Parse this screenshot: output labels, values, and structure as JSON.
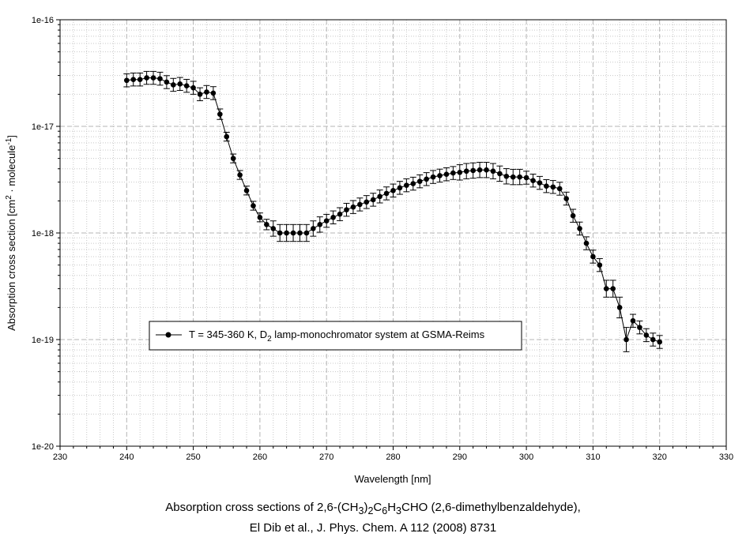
{
  "chart_data": {
    "type": "scatter",
    "xlabel": "Wavelength [nm]",
    "ylabel": {
      "pre": "Absorption cross section [cm",
      "sup1": "2",
      "mid": " · molecule",
      "sup2": "-1",
      "post": "]"
    },
    "xlim": [
      230,
      330
    ],
    "ylim": [
      1e-20,
      1e-16
    ],
    "yscale": "log",
    "grid": true,
    "legend_position": "lower-left",
    "x_ticks": [
      "230",
      "240",
      "250",
      "260",
      "270",
      "280",
      "290",
      "300",
      "310",
      "320",
      "330"
    ],
    "y_ticks": [
      "1e-20",
      "1e-19",
      "1e-18",
      "1e-17",
      "1e-16"
    ],
    "series": [
      {
        "name": {
          "pre": "T = 345-360 K, D",
          "sub": "2",
          "post": " lamp-monochromator system at GSMA-Reims"
        },
        "color": "#000000",
        "x": [
          240,
          241,
          242,
          243,
          244,
          245,
          246,
          247,
          248,
          249,
          250,
          251,
          252,
          253,
          254,
          255,
          256,
          257,
          258,
          259,
          260,
          261,
          262,
          263,
          264,
          265,
          266,
          267,
          268,
          269,
          270,
          271,
          272,
          273,
          274,
          275,
          276,
          277,
          278,
          279,
          280,
          281,
          282,
          283,
          284,
          285,
          286,
          287,
          288,
          289,
          290,
          291,
          292,
          293,
          294,
          295,
          296,
          297,
          298,
          299,
          300,
          301,
          302,
          303,
          304,
          305,
          306,
          307,
          308,
          309,
          310,
          311,
          312,
          313,
          314,
          315,
          316,
          317,
          318,
          319,
          320
        ],
        "y": [
          2.7e-17,
          2.75e-17,
          2.75e-17,
          2.85e-17,
          2.85e-17,
          2.8e-17,
          2.6e-17,
          2.45e-17,
          2.5e-17,
          2.4e-17,
          2.3e-17,
          2e-17,
          2.1e-17,
          2.05e-17,
          1.3e-17,
          8e-18,
          5e-18,
          3.5e-18,
          2.5e-18,
          1.8e-18,
          1.4e-18,
          1.2e-18,
          1.1e-18,
          1e-18,
          1e-18,
          1e-18,
          1e-18,
          1e-18,
          1.1e-18,
          1.2e-18,
          1.3e-18,
          1.4e-18,
          1.5e-18,
          1.65e-18,
          1.75e-18,
          1.85e-18,
          1.95e-18,
          2.05e-18,
          2.2e-18,
          2.35e-18,
          2.5e-18,
          2.65e-18,
          2.8e-18,
          2.9e-18,
          3.05e-18,
          3.2e-18,
          3.35e-18,
          3.45e-18,
          3.55e-18,
          3.65e-18,
          3.7e-18,
          3.8e-18,
          3.85e-18,
          3.9e-18,
          3.9e-18,
          3.8e-18,
          3.6e-18,
          3.4e-18,
          3.35e-18,
          3.35e-18,
          3.3e-18,
          3.1e-18,
          2.95e-18,
          2.75e-18,
          2.7e-18,
          2.6e-18,
          2.1e-18,
          1.45e-18,
          1.1e-18,
          8e-19,
          6e-19,
          5e-19,
          3e-19,
          3e-19,
          2e-19,
          1e-19,
          1.5e-19,
          1.3e-19,
          1.1e-19,
          1e-19,
          9.5e-20
        ],
        "err": [
          0.15,
          0.15,
          0.15,
          0.15,
          0.15,
          0.15,
          0.15,
          0.15,
          0.15,
          0.15,
          0.15,
          0.15,
          0.15,
          0.15,
          0.12,
          0.1,
          0.1,
          0.1,
          0.1,
          0.1,
          0.1,
          0.12,
          0.18,
          0.2,
          0.2,
          0.2,
          0.2,
          0.2,
          0.18,
          0.18,
          0.15,
          0.15,
          0.15,
          0.15,
          0.15,
          0.15,
          0.15,
          0.15,
          0.15,
          0.15,
          0.15,
          0.15,
          0.15,
          0.15,
          0.15,
          0.15,
          0.15,
          0.15,
          0.15,
          0.15,
          0.18,
          0.18,
          0.18,
          0.18,
          0.18,
          0.18,
          0.18,
          0.18,
          0.18,
          0.18,
          0.15,
          0.15,
          0.15,
          0.15,
          0.15,
          0.15,
          0.15,
          0.15,
          0.15,
          0.15,
          0.15,
          0.15,
          0.2,
          0.2,
          0.25,
          0.3,
          0.15,
          0.15,
          0.15,
          0.15,
          0.15
        ]
      }
    ]
  },
  "caption": {
    "line1": {
      "t1": "Absorption cross sections of 2,6-(CH",
      "s1": "3",
      "t2": ")",
      "s2": "2",
      "t3": "C",
      "s3": "6",
      "t4": "H",
      "s4": "3",
      "t5": "CHO (2,6-dimethylbenzaldehyde),"
    },
    "line2": "El Dib et al., J. Phys. Chem. A 112 (2008) 8731"
  }
}
